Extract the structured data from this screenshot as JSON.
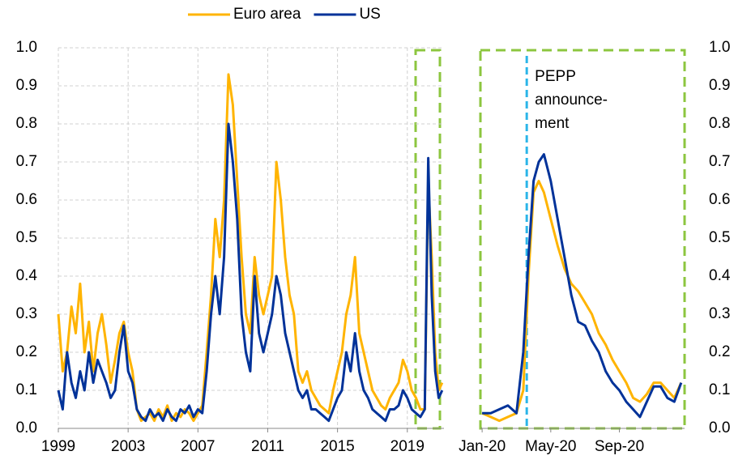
{
  "chart_data": [
    {
      "type": "line",
      "x": [
        1999.0,
        1999.25,
        1999.5,
        1999.75,
        2000.0,
        2000.25,
        2000.5,
        2000.75,
        2001.0,
        2001.25,
        2001.5,
        2001.75,
        2002.0,
        2002.25,
        2002.5,
        2002.75,
        2003.0,
        2003.25,
        2003.5,
        2003.75,
        2004.0,
        2004.25,
        2004.5,
        2004.75,
        2005.0,
        2005.25,
        2005.5,
        2005.75,
        2006.0,
        2006.25,
        2006.5,
        2006.75,
        2007.0,
        2007.25,
        2007.5,
        2007.75,
        2008.0,
        2008.25,
        2008.5,
        2008.75,
        2009.0,
        2009.25,
        2009.5,
        2009.75,
        2010.0,
        2010.25,
        2010.5,
        2010.75,
        2011.0,
        2011.25,
        2011.5,
        2011.75,
        2012.0,
        2012.25,
        2012.5,
        2012.75,
        2013.0,
        2013.25,
        2013.5,
        2013.75,
        2014.0,
        2014.25,
        2014.5,
        2014.75,
        2015.0,
        2015.25,
        2015.5,
        2015.75,
        2016.0,
        2016.25,
        2016.5,
        2016.75,
        2017.0,
        2017.25,
        2017.5,
        2017.75,
        2018.0,
        2018.25,
        2018.5,
        2018.75,
        2019.0,
        2019.25,
        2019.5,
        2019.75,
        2020.0,
        2020.2,
        2020.4,
        2020.6,
        2020.8,
        2021.0
      ],
      "series": [
        {
          "name": "Euro area",
          "color": "#ffb400",
          "values": [
            0.3,
            0.15,
            0.2,
            0.32,
            0.25,
            0.38,
            0.2,
            0.28,
            0.15,
            0.25,
            0.3,
            0.22,
            0.12,
            0.18,
            0.25,
            0.28,
            0.2,
            0.15,
            0.05,
            0.02,
            0.03,
            0.04,
            0.02,
            0.05,
            0.03,
            0.06,
            0.02,
            0.04,
            0.03,
            0.05,
            0.04,
            0.02,
            0.04,
            0.06,
            0.2,
            0.35,
            0.55,
            0.45,
            0.6,
            0.93,
            0.85,
            0.65,
            0.45,
            0.3,
            0.25,
            0.45,
            0.35,
            0.3,
            0.35,
            0.4,
            0.7,
            0.6,
            0.45,
            0.35,
            0.3,
            0.15,
            0.12,
            0.15,
            0.1,
            0.08,
            0.06,
            0.05,
            0.04,
            0.1,
            0.15,
            0.2,
            0.3,
            0.35,
            0.45,
            0.25,
            0.2,
            0.15,
            0.1,
            0.08,
            0.06,
            0.05,
            0.08,
            0.1,
            0.12,
            0.18,
            0.15,
            0.1,
            0.08,
            0.05,
            0.05,
            0.65,
            0.45,
            0.2,
            0.1,
            0.12
          ]
        },
        {
          "name": "US",
          "color": "#003299",
          "values": [
            0.1,
            0.05,
            0.2,
            0.12,
            0.08,
            0.15,
            0.1,
            0.2,
            0.12,
            0.18,
            0.15,
            0.12,
            0.08,
            0.1,
            0.2,
            0.27,
            0.15,
            0.12,
            0.05,
            0.03,
            0.02,
            0.05,
            0.03,
            0.04,
            0.02,
            0.05,
            0.03,
            0.02,
            0.05,
            0.04,
            0.06,
            0.03,
            0.05,
            0.04,
            0.15,
            0.3,
            0.4,
            0.3,
            0.45,
            0.8,
            0.7,
            0.55,
            0.3,
            0.2,
            0.15,
            0.4,
            0.25,
            0.2,
            0.25,
            0.3,
            0.4,
            0.35,
            0.25,
            0.2,
            0.15,
            0.1,
            0.08,
            0.1,
            0.05,
            0.05,
            0.04,
            0.03,
            0.02,
            0.05,
            0.08,
            0.1,
            0.2,
            0.15,
            0.25,
            0.15,
            0.1,
            0.08,
            0.05,
            0.04,
            0.03,
            0.02,
            0.05,
            0.05,
            0.06,
            0.1,
            0.08,
            0.05,
            0.04,
            0.03,
            0.05,
            0.71,
            0.35,
            0.15,
            0.08,
            0.1
          ]
        }
      ],
      "xlim": [
        1999,
        2021.1
      ],
      "xticks": [
        1999,
        2003,
        2007,
        2011,
        2015,
        2019
      ],
      "ylim": [
        0,
        1
      ],
      "yticks": [
        {
          "value": 0,
          "label": "0.0"
        },
        {
          "value": 0.1,
          "label": "0.1"
        },
        {
          "value": 0.2,
          "label": "0.2"
        },
        {
          "value": 0.3,
          "label": "0.3"
        },
        {
          "value": 0.4,
          "label": "0.4"
        },
        {
          "value": 0.5,
          "label": "0.5"
        },
        {
          "value": 0.6,
          "label": "0.6"
        },
        {
          "value": 0.7,
          "label": "0.7"
        },
        {
          "value": 0.8,
          "label": "0.8"
        },
        {
          "value": 0.9,
          "label": "0.9"
        },
        {
          "value": 1,
          "label": "1.0"
        }
      ],
      "grid": true
    },
    {
      "type": "line",
      "x": [
        0,
        0.5,
        1,
        1.5,
        2,
        2.4,
        2.7,
        3.0,
        3.3,
        3.6,
        4.0,
        4.4,
        4.8,
        5.2,
        5.6,
        6.0,
        6.4,
        6.8,
        7.2,
        7.6,
        8.0,
        8.4,
        8.8,
        9.2,
        9.6,
        10.0,
        10.4,
        10.8,
        11.2,
        11.6
      ],
      "series": [
        {
          "name": "Euro area",
          "color": "#ffb400",
          "values": [
            0.04,
            0.03,
            0.02,
            0.03,
            0.04,
            0.1,
            0.4,
            0.62,
            0.65,
            0.62,
            0.55,
            0.48,
            0.42,
            0.38,
            0.36,
            0.33,
            0.3,
            0.25,
            0.22,
            0.18,
            0.15,
            0.12,
            0.08,
            0.07,
            0.09,
            0.12,
            0.12,
            0.1,
            0.08,
            0.12
          ]
        },
        {
          "name": "US",
          "color": "#003299",
          "values": [
            0.04,
            0.04,
            0.05,
            0.06,
            0.04,
            0.2,
            0.45,
            0.65,
            0.7,
            0.72,
            0.65,
            0.55,
            0.45,
            0.35,
            0.28,
            0.27,
            0.23,
            0.2,
            0.15,
            0.12,
            0.1,
            0.07,
            0.05,
            0.03,
            0.07,
            0.11,
            0.11,
            0.08,
            0.07,
            0.12
          ]
        }
      ],
      "xlim": [
        -0.1,
        11.8
      ],
      "xticks": [
        {
          "value": 0,
          "label": "Jan-20"
        },
        {
          "value": 4,
          "label": "May-20"
        },
        {
          "value": 8,
          "label": "Sep-20"
        }
      ],
      "ylim": [
        0,
        1
      ],
      "yticks": [
        {
          "value": 0,
          "label": "0.0"
        },
        {
          "value": 0.1,
          "label": "0.1"
        },
        {
          "value": 0.2,
          "label": "0.2"
        },
        {
          "value": 0.3,
          "label": "0.3"
        },
        {
          "value": 0.4,
          "label": "0.4"
        },
        {
          "value": 0.5,
          "label": "0.5"
        },
        {
          "value": 0.6,
          "label": "0.6"
        },
        {
          "value": 0.7,
          "label": "0.7"
        },
        {
          "value": 0.8,
          "label": "0.8"
        },
        {
          "value": 0.9,
          "label": "0.9"
        },
        {
          "value": 1,
          "label": "1.0"
        }
      ],
      "grid": false,
      "annotation": {
        "lines": [
          "PEPP",
          "announce-",
          "ment"
        ],
        "x": 2.6
      }
    }
  ]
}
